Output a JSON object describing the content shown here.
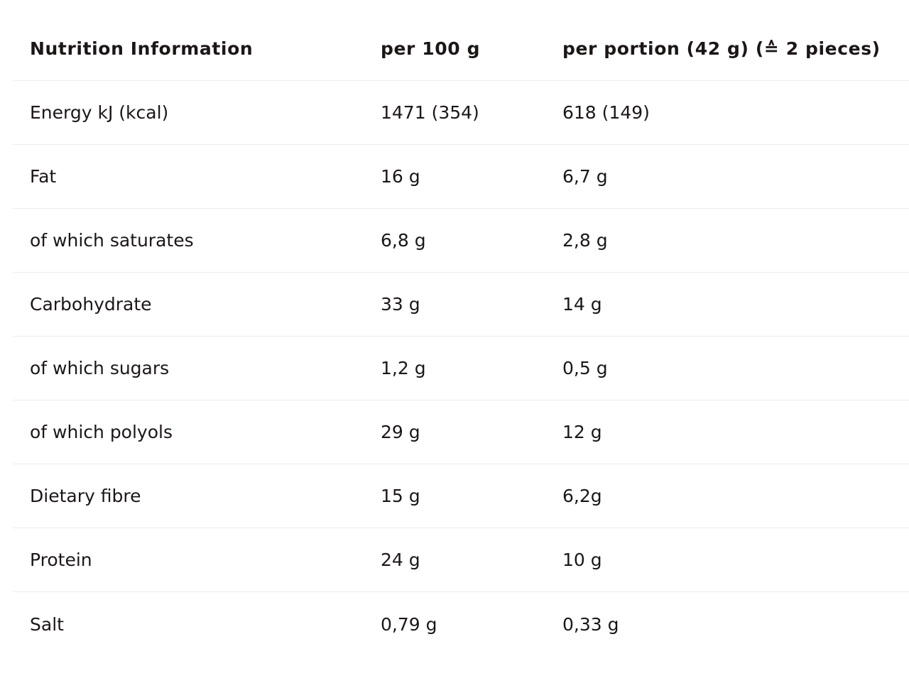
{
  "header": {
    "col1": "Nutrition Information",
    "col2": "per 100 g",
    "col3": "per portion (42 g) (≙ 2 pieces)"
  },
  "rows": [
    {
      "label": "Energy kJ (kcal)",
      "per100": "1471 (354)",
      "perPortion": "618 (149)"
    },
    {
      "label": "Fat",
      "per100": "16 g",
      "perPortion": "6,7 g"
    },
    {
      "label": "of which saturates",
      "per100": "6,8 g",
      "perPortion": "2,8 g"
    },
    {
      "label": "Carbohydrate",
      "per100": "33 g",
      "perPortion": "14 g"
    },
    {
      "label": "of which sugars",
      "per100": "1,2 g",
      "perPortion": "0,5 g"
    },
    {
      "label": "of which polyols",
      "per100": "29 g",
      "perPortion": "12 g"
    },
    {
      "label": "Dietary fibre",
      "per100": "15 g",
      "perPortion": "6,2g"
    },
    {
      "label": "Protein",
      "per100": "24 g",
      "perPortion": "10 g"
    },
    {
      "label": "Salt",
      "per100": "0,79 g",
      "perPortion": "0,33 g"
    }
  ]
}
